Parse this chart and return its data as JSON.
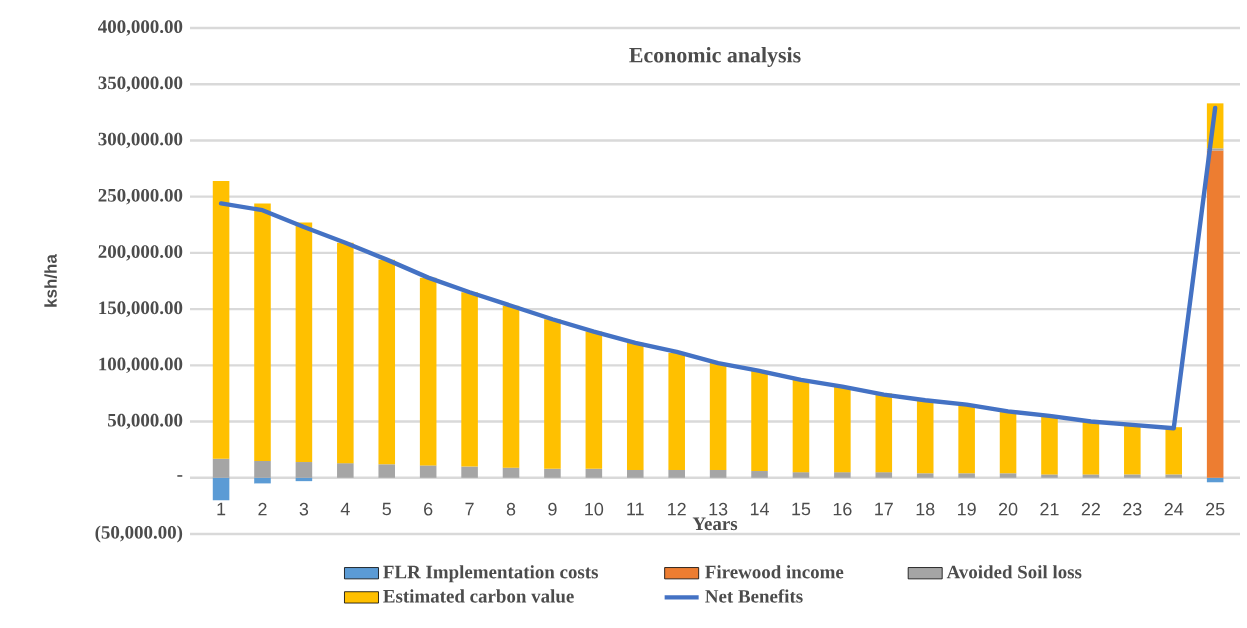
{
  "chart_data": {
    "type": "bar",
    "title": "Economic analysis",
    "xlabel": "Years",
    "ylabel": "ksh/ha",
    "categories": [
      "1",
      "2",
      "3",
      "4",
      "5",
      "6",
      "7",
      "8",
      "9",
      "10",
      "11",
      "12",
      "13",
      "14",
      "15",
      "16",
      "17",
      "18",
      "19",
      "20",
      "21",
      "22",
      "23",
      "24",
      "25"
    ],
    "stacked": true,
    "series": [
      {
        "name": "FLR Implementation costs",
        "color": "#5b9bd5",
        "values": [
          -20000,
          -5000,
          -3000,
          null,
          null,
          null,
          null,
          null,
          null,
          null,
          null,
          null,
          null,
          null,
          null,
          null,
          null,
          null,
          null,
          null,
          null,
          null,
          null,
          null,
          -4000
        ]
      },
      {
        "name": "Firewood income",
        "color": "#ed7d31",
        "values": [
          null,
          null,
          null,
          null,
          null,
          null,
          null,
          null,
          null,
          null,
          null,
          null,
          null,
          null,
          null,
          null,
          null,
          null,
          null,
          null,
          null,
          null,
          null,
          null,
          291000
        ]
      },
      {
        "name": "Avoided Soil loss",
        "color": "#a5a5a5",
        "values": [
          17000,
          15000,
          14000,
          13000,
          12000,
          11000,
          10000,
          9000,
          8000,
          8000,
          7000,
          7000,
          7000,
          6000,
          5000,
          5000,
          5000,
          4000,
          4000,
          4000,
          3000,
          3000,
          3000,
          3000,
          2000
        ]
      },
      {
        "name": "Estimated carbon value",
        "color": "#ffc000",
        "values": [
          247000,
          229000,
          213000,
          196000,
          182000,
          167000,
          155000,
          144000,
          133000,
          122000,
          113000,
          104000,
          95000,
          89000,
          82000,
          76000,
          70000,
          65000,
          61000,
          56000,
          52000,
          47000,
          44000,
          42000,
          40000
        ]
      },
      {
        "name": "Net Benefits",
        "type": "line",
        "color": "#4472c4",
        "marker": "none",
        "line_style": "solid",
        "values": [
          244000,
          238000,
          223000,
          209000,
          194000,
          178000,
          165000,
          153000,
          141000,
          130000,
          120000,
          112000,
          102000,
          95000,
          87000,
          81000,
          74000,
          69000,
          65000,
          59000,
          55000,
          50000,
          47000,
          44000,
          329000
        ]
      }
    ],
    "ylim": [
      -50000,
      400000
    ],
    "yticks": [
      {
        "value": -50000,
        "label": "(50,000.00)"
      },
      {
        "value": 0,
        "label": "-"
      },
      {
        "value": 50000,
        "label": "50,000.00"
      },
      {
        "value": 100000,
        "label": "100,000.00"
      },
      {
        "value": 150000,
        "label": "150,000.00"
      },
      {
        "value": 200000,
        "label": "200,000.00"
      },
      {
        "value": 250000,
        "label": "250,000.00"
      },
      {
        "value": 300000,
        "label": "300,000.00"
      },
      {
        "value": 350000,
        "label": "350,000.00"
      },
      {
        "value": 400000,
        "label": "400,000.00"
      }
    ],
    "grid": "y",
    "legend": "bottom"
  }
}
